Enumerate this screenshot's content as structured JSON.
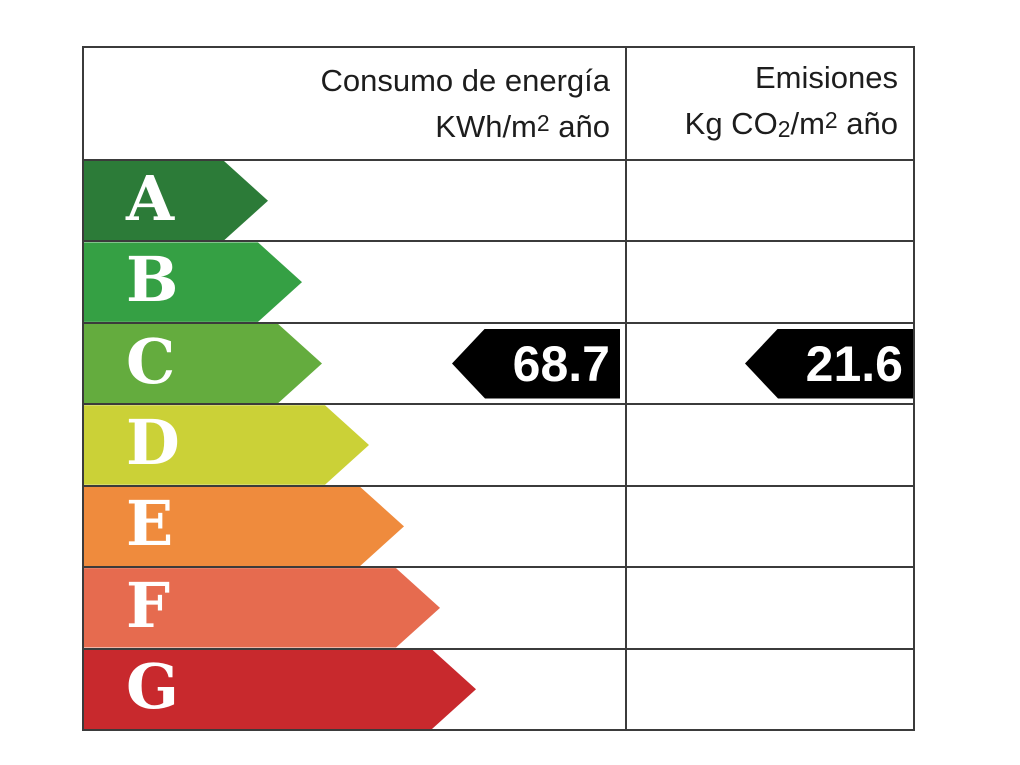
{
  "chart_data": {
    "type": "table",
    "columns": [
      "Consumo de energía KWh/m2 año",
      "Emisiones Kg CO2/m2 año"
    ],
    "rating_scale": [
      "A",
      "B",
      "C",
      "D",
      "E",
      "F",
      "G"
    ],
    "assigned_rating": "C",
    "values": [
      {
        "metric": "Consumo de energía",
        "value": 68.7,
        "unit": "KWh/m2 año"
      },
      {
        "metric": "Emisiones",
        "value": 21.6,
        "unit": "Kg CO2/m2 año"
      }
    ]
  },
  "table": {
    "border_color": "#3b3b3b",
    "background_color": "#ffffff",
    "header": {
      "consumption_title": "Consumo de energía",
      "consumption_unit_prefix": "KWh/m",
      "consumption_unit_sup": "2",
      "consumption_unit_suffix": " año",
      "emissions_title": "Emisiones",
      "emissions_unit_prefix": "Kg CO",
      "emissions_unit_sub": "2",
      "emissions_unit_mid": "/m",
      "emissions_unit_sup": "2",
      "emissions_unit_suffix": " año"
    },
    "ratings": [
      {
        "label": "A",
        "color": "#2c7b38",
        "arrow_width": 184
      },
      {
        "label": "B",
        "color": "#35a044",
        "arrow_width": 218
      },
      {
        "label": "C",
        "color": "#64ac3e",
        "arrow_width": 238
      },
      {
        "label": "D",
        "color": "#cbd137",
        "arrow_width": 285
      },
      {
        "label": "E",
        "color": "#ef8b3d",
        "arrow_width": 320
      },
      {
        "label": "F",
        "color": "#e66b4f",
        "arrow_width": 356
      },
      {
        "label": "G",
        "color": "#c8292d",
        "arrow_width": 392
      }
    ],
    "result": {
      "rating": "C",
      "consumption_value": "68.7",
      "emissions_value": "21.6",
      "arrow_color": "#000000",
      "value_text_color": "#ffffff"
    }
  }
}
